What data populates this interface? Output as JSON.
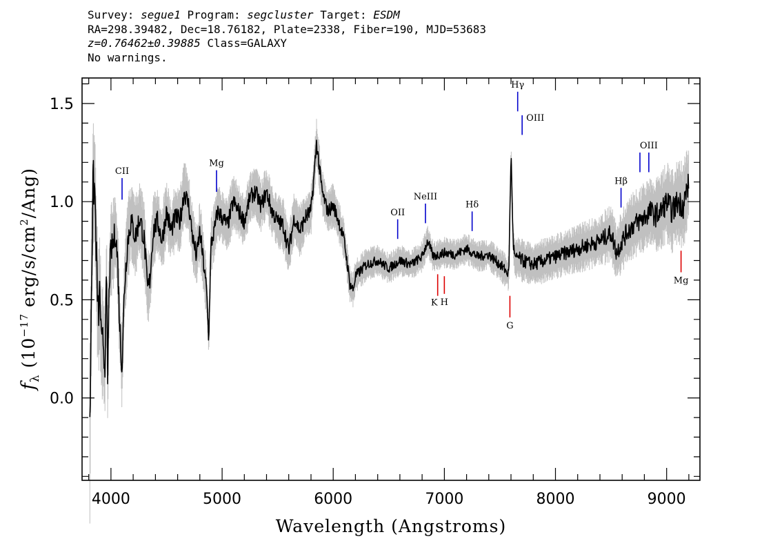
{
  "header": {
    "survey_label": "Survey:",
    "survey": "segue1",
    "program_label": "Program:",
    "program": "segcluster",
    "target_label": "Target:",
    "target": "ESDM",
    "line2": "RA=298.39482, Dec=18.76182, Plate=2338, Fiber=190, MJD=53683",
    "redshift": "z=0.76462±0.39885",
    "class_text": "Class=GALAXY",
    "warnings": "No warnings."
  },
  "chart_data": {
    "type": "line",
    "xlabel": "Wavelength (Angstroms)",
    "ylabel": "f_λ (10^-17 erg/s/cm^2/Ang)",
    "xlim": [
      3740,
      9300
    ],
    "ylim": [
      -0.42,
      1.63
    ],
    "x_ticks": [
      4000,
      5000,
      6000,
      7000,
      8000,
      9000
    ],
    "x_tick_labels": [
      "4000",
      "5000",
      "6000",
      "7000",
      "8000",
      "9000"
    ],
    "y_ticks": [
      0.0,
      0.5,
      1.0,
      1.5
    ],
    "y_tick_labels": [
      "0.0",
      "0.5",
      "1.0",
      "1.5"
    ],
    "colors": {
      "flux": "#000000",
      "error": "#c0c0c0",
      "emission": "#0000cc",
      "absorption": "#dd0000"
    },
    "series": [
      {
        "role": "flux",
        "x": [
          3810,
          3825,
          3840,
          3855,
          3870,
          3885,
          3900,
          3915,
          3930,
          3945,
          3960,
          3970,
          3985,
          4000,
          4020,
          4040,
          4060,
          4080,
          4100,
          4120,
          4150,
          4180,
          4220,
          4260,
          4300,
          4330,
          4350,
          4380,
          4420,
          4460,
          4500,
          4540,
          4580,
          4620,
          4660,
          4700,
          4740,
          4770,
          4800,
          4830,
          4860,
          4880,
          4900,
          4930,
          4960,
          5000,
          5050,
          5100,
          5150,
          5200,
          5250,
          5300,
          5350,
          5400,
          5450,
          5500,
          5550,
          5600,
          5650,
          5700,
          5750,
          5800,
          5830,
          5850,
          5870,
          5900,
          5950,
          6000,
          6050,
          6100,
          6150,
          6180,
          6200,
          6250,
          6300,
          6400,
          6500,
          6600,
          6700,
          6800,
          6850,
          6900,
          7000,
          7100,
          7200,
          7300,
          7400,
          7500,
          7550,
          7580,
          7600,
          7620,
          7640,
          7660,
          7700,
          7800,
          7900,
          8000,
          8100,
          8200,
          8300,
          8400,
          8450,
          8500,
          8550,
          8600,
          8650,
          8700,
          8750,
          8800,
          8850,
          8900,
          8950,
          9000,
          9050,
          9100,
          9150,
          9200
        ],
        "values": [
          -0.18,
          0.62,
          1.1,
          1.05,
          0.7,
          0.4,
          0.55,
          0.25,
          0.3,
          0.15,
          0.62,
          0.1,
          0.6,
          0.75,
          0.78,
          0.85,
          0.7,
          0.35,
          0.15,
          0.55,
          0.8,
          0.9,
          0.82,
          0.92,
          0.8,
          0.55,
          0.6,
          0.85,
          0.9,
          0.8,
          0.95,
          0.85,
          0.92,
          0.9,
          1.05,
          0.98,
          0.8,
          0.72,
          0.85,
          0.7,
          0.55,
          0.3,
          0.78,
          0.85,
          0.95,
          0.92,
          0.88,
          1.0,
          0.95,
          0.9,
          1.02,
          1.05,
          0.98,
          1.05,
          0.95,
          0.9,
          0.88,
          0.75,
          0.92,
          0.85,
          0.92,
          0.95,
          1.15,
          1.3,
          1.2,
          1.05,
          0.95,
          0.98,
          0.9,
          0.8,
          0.58,
          0.55,
          0.62,
          0.65,
          0.68,
          0.7,
          0.66,
          0.7,
          0.68,
          0.72,
          0.8,
          0.72,
          0.74,
          0.73,
          0.76,
          0.72,
          0.73,
          0.68,
          0.65,
          0.63,
          1.25,
          0.78,
          0.7,
          0.72,
          0.7,
          0.68,
          0.7,
          0.72,
          0.74,
          0.76,
          0.78,
          0.8,
          0.82,
          0.84,
          0.74,
          0.8,
          0.85,
          0.88,
          0.9,
          0.92,
          0.95,
          0.93,
          0.95,
          1.0,
          0.95,
          1.0,
          0.98,
          1.1
        ]
      },
      {
        "role": "error",
        "x": [
          3810,
          3840,
          3900,
          4000,
          4100,
          4200,
          4300,
          4400,
          4500,
          4600,
          4700,
          4800,
          4900,
          5000,
          5200,
          5400,
          5600,
          5800,
          5850,
          5900,
          6000,
          6100,
          6200,
          6400,
          6600,
          6800,
          7000,
          7200,
          7400,
          7600,
          7700,
          7800,
          8000,
          8200,
          8400,
          8600,
          8800,
          9000,
          9200
        ],
        "values": [
          0.4,
          0.35,
          0.28,
          0.22,
          0.2,
          0.18,
          0.17,
          0.16,
          0.15,
          0.15,
          0.14,
          0.14,
          0.13,
          0.13,
          0.12,
          0.12,
          0.12,
          0.12,
          0.12,
          0.11,
          0.1,
          0.09,
          0.08,
          0.07,
          0.07,
          0.07,
          0.07,
          0.07,
          0.07,
          0.08,
          0.1,
          0.1,
          0.1,
          0.11,
          0.12,
          0.14,
          0.16,
          0.18,
          0.2
        ]
      }
    ],
    "line_markers": [
      {
        "label": "CII",
        "x": 4100,
        "y_from": 1.01,
        "y_to": 1.12,
        "kind": "emission",
        "label_pos": "above"
      },
      {
        "label": "Mg",
        "x": 4950,
        "y_from": 1.05,
        "y_to": 1.16,
        "kind": "emission",
        "label_pos": "above"
      },
      {
        "label": "OII",
        "x": 6580,
        "y_from": 0.81,
        "y_to": 0.91,
        "kind": "emission",
        "label_pos": "above"
      },
      {
        "label": "NeIII",
        "x": 6830,
        "y_from": 0.89,
        "y_to": 0.99,
        "kind": "emission",
        "label_pos": "above"
      },
      {
        "label": "Hδ",
        "x": 7250,
        "y_from": 0.85,
        "y_to": 0.95,
        "kind": "emission",
        "label_pos": "above"
      },
      {
        "label": "Hγ",
        "x": 7660,
        "y_from": 1.46,
        "y_to": 1.56,
        "kind": "emission",
        "label_pos": "above"
      },
      {
        "label": "OIII",
        "x": 7700,
        "y_from": 1.34,
        "y_to": 1.44,
        "kind": "emission",
        "label_pos": "right"
      },
      {
        "label": "Hβ",
        "x": 8590,
        "y_from": 0.97,
        "y_to": 1.07,
        "kind": "emission",
        "label_pos": "above"
      },
      {
        "label": "OIII",
        "x": 8760,
        "y_from": 1.15,
        "y_to": 1.25,
        "kind": "emission",
        "label_pos": "none"
      },
      {
        "label": "OIII",
        "x": 8840,
        "y_from": 1.15,
        "y_to": 1.25,
        "kind": "emission",
        "label_pos": "above"
      },
      {
        "label": "K",
        "x": 6940,
        "y_from": 0.52,
        "y_to": 0.63,
        "kind": "absorption",
        "label_pos": "below-left"
      },
      {
        "label": "H",
        "x": 7000,
        "y_from": 0.53,
        "y_to": 0.62,
        "kind": "absorption",
        "label_pos": "below"
      },
      {
        "label": "G",
        "x": 7590,
        "y_from": 0.41,
        "y_to": 0.52,
        "kind": "absorption",
        "label_pos": "below"
      },
      {
        "label": "Mg",
        "x": 9130,
        "y_from": 0.64,
        "y_to": 0.75,
        "kind": "absorption",
        "label_pos": "below"
      }
    ]
  }
}
